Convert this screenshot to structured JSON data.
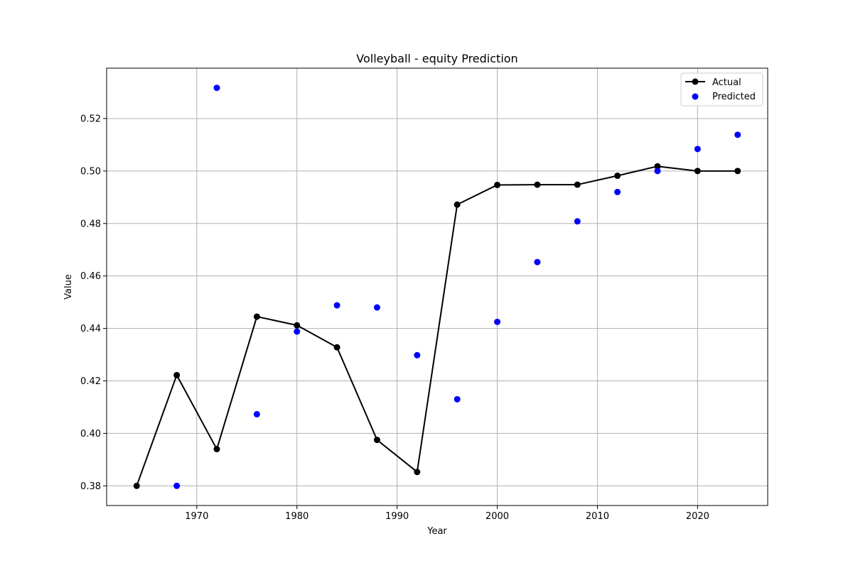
{
  "chart_data": {
    "type": "line",
    "title": "Volleyball - equity Prediction",
    "xlabel": "Year",
    "ylabel": "Value",
    "xlim": [
      1961,
      2027
    ],
    "ylim": [
      0.3725,
      0.5392
    ],
    "x_ticks": [
      1970,
      1980,
      1990,
      2000,
      2010,
      2020
    ],
    "y_ticks": [
      0.38,
      0.4,
      0.42,
      0.44,
      0.46,
      0.48,
      0.5,
      0.52
    ],
    "grid": true,
    "legend_position": "top-right",
    "series": [
      {
        "name": "Actual",
        "style": "line-marker",
        "color": "#000000",
        "x": [
          1964,
          1968,
          1972,
          1976,
          1980,
          1984,
          1988,
          1992,
          1996,
          2000,
          2004,
          2008,
          2012,
          2016,
          2020,
          2024
        ],
        "y": [
          0.38,
          0.4222,
          0.394,
          0.4445,
          0.4412,
          0.4328,
          0.3975,
          0.3853,
          0.4872,
          0.4947,
          0.4948,
          0.4948,
          0.4982,
          0.5018,
          0.5,
          0.5
        ]
      },
      {
        "name": "Predicted",
        "style": "scatter",
        "color": "#0000ff",
        "x": [
          1968,
          1972,
          1976,
          1980,
          1984,
          1988,
          1992,
          1996,
          2000,
          2004,
          2008,
          2012,
          2016,
          2020,
          2024
        ],
        "y": [
          0.38,
          0.5317,
          0.4073,
          0.4388,
          0.4488,
          0.448,
          0.4298,
          0.413,
          0.4425,
          0.4653,
          0.4808,
          0.492,
          0.5,
          0.5084,
          0.5138
        ]
      }
    ]
  }
}
